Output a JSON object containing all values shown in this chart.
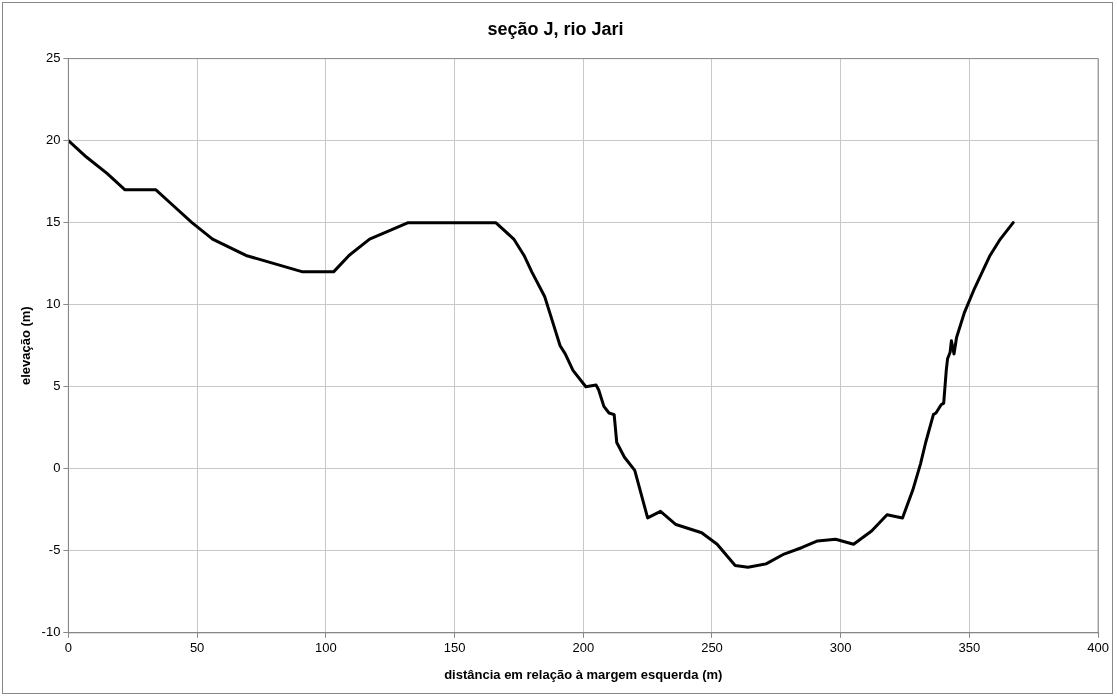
{
  "chart_data": {
    "type": "line",
    "title": "seção J, rio Jari",
    "xlabel": "distância em relação à margem esquerda (m)",
    "ylabel": "elevação (m)",
    "x": [
      0,
      7,
      15,
      22,
      34,
      41,
      48,
      56,
      69,
      91,
      103,
      109,
      117,
      132,
      166,
      173,
      177,
      180,
      185,
      187,
      191,
      193,
      196,
      201,
      205,
      206,
      208,
      210,
      212,
      213,
      216,
      220,
      225,
      230,
      236,
      246,
      252,
      259,
      264,
      271,
      278,
      285,
      291,
      298,
      305,
      312,
      318,
      324,
      328,
      331,
      333,
      336,
      337,
      339,
      340,
      341,
      341.5,
      342.5,
      343,
      344,
      345,
      348,
      352,
      358,
      362,
      367
    ],
    "series": [
      {
        "color": "#000000",
        "values": [
          20,
          19,
          18,
          17,
          17,
          16,
          15,
          14,
          13,
          12,
          12,
          13,
          14,
          15,
          15,
          14,
          13,
          12,
          10.5,
          9.5,
          7.5,
          7,
          6,
          5,
          5.1,
          4.8,
          3.8,
          3.4,
          3.3,
          1.6,
          0.7,
          -0.1,
          -3,
          -2.6,
          -3.4,
          -3.9,
          -4.6,
          -5.9,
          -6,
          -5.8,
          -5.2,
          -4.8,
          -4.4,
          -4.3,
          -4.6,
          -3.8,
          -2.8,
          -3,
          -1.3,
          0.3,
          1.6,
          3.3,
          3.4,
          3.9,
          4,
          6,
          6.7,
          7.1,
          7.8,
          7,
          8,
          9.5,
          11,
          13,
          14,
          15
        ]
      }
    ],
    "xlim": [
      0,
      400
    ],
    "xticks": [
      0,
      50,
      100,
      150,
      200,
      250,
      300,
      350,
      400
    ],
    "ylim": [
      -10,
      25
    ],
    "yticks": [
      -10,
      -5,
      0,
      5,
      10,
      15,
      20,
      25
    ],
    "grid": true,
    "legend": false,
    "marker": "none",
    "line_style": "solid"
  }
}
